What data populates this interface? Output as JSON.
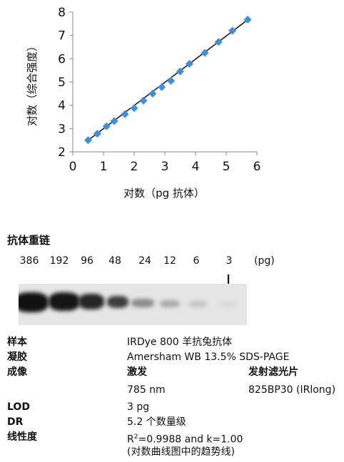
{
  "chart_data": {
    "type": "scatter",
    "xlabel": "对数（pg 抗体）",
    "ylabel": "对数（综合强度）",
    "xlim": [
      0,
      6
    ],
    "ylim": [
      2,
      8
    ],
    "xticks": [
      0,
      1,
      2,
      3,
      4,
      5,
      6
    ],
    "yticks": [
      2,
      3,
      4,
      5,
      6,
      7,
      8
    ],
    "marker_color": "#3d8fe0",
    "line_color": "#111111",
    "points": [
      [
        0.5,
        2.5
      ],
      [
        0.8,
        2.78
      ],
      [
        1.1,
        3.1
      ],
      [
        1.35,
        3.32
      ],
      [
        1.7,
        3.62
      ],
      [
        2.0,
        3.88
      ],
      [
        2.3,
        4.2
      ],
      [
        2.6,
        4.5
      ],
      [
        2.9,
        4.78
      ],
      [
        3.2,
        5.05
      ],
      [
        3.5,
        5.45
      ],
      [
        3.8,
        5.78
      ],
      [
        4.3,
        6.25
      ],
      [
        4.75,
        6.72
      ],
      [
        5.2,
        7.2
      ],
      [
        5.7,
        7.68
      ]
    ],
    "fit": {
      "x": [
        0.45,
        5.75
      ],
      "y": [
        2.45,
        7.72
      ]
    }
  },
  "blot": {
    "title": "抗体重链",
    "unit": "(pg)",
    "lanes": [
      "386",
      "192",
      "96",
      "48",
      "24",
      "12",
      "6",
      "3"
    ]
  },
  "specs": {
    "sample": {
      "label": "样本",
      "value": "IRDye 800 羊抗兔抗体"
    },
    "gel": {
      "label": "凝胶",
      "value": "Amersham WB 13.5% SDS-PAGE"
    },
    "imaging": {
      "label": "成像",
      "excitation_head": "激发",
      "emission_head": "发射滤光片",
      "excitation": "785 nm",
      "emission": "825BP30 (IRlong)"
    },
    "lod": {
      "label": "LOD",
      "value": "3 pg"
    },
    "dr": {
      "label": "DR",
      "value": "5.2 个数量级"
    },
    "linearity": {
      "label": "线性度",
      "r_prefix": "R",
      "r_sup": "2",
      "r_rest": "=0.9988 and k=1.00",
      "note": "(对数曲线图中的趋势线)"
    }
  }
}
